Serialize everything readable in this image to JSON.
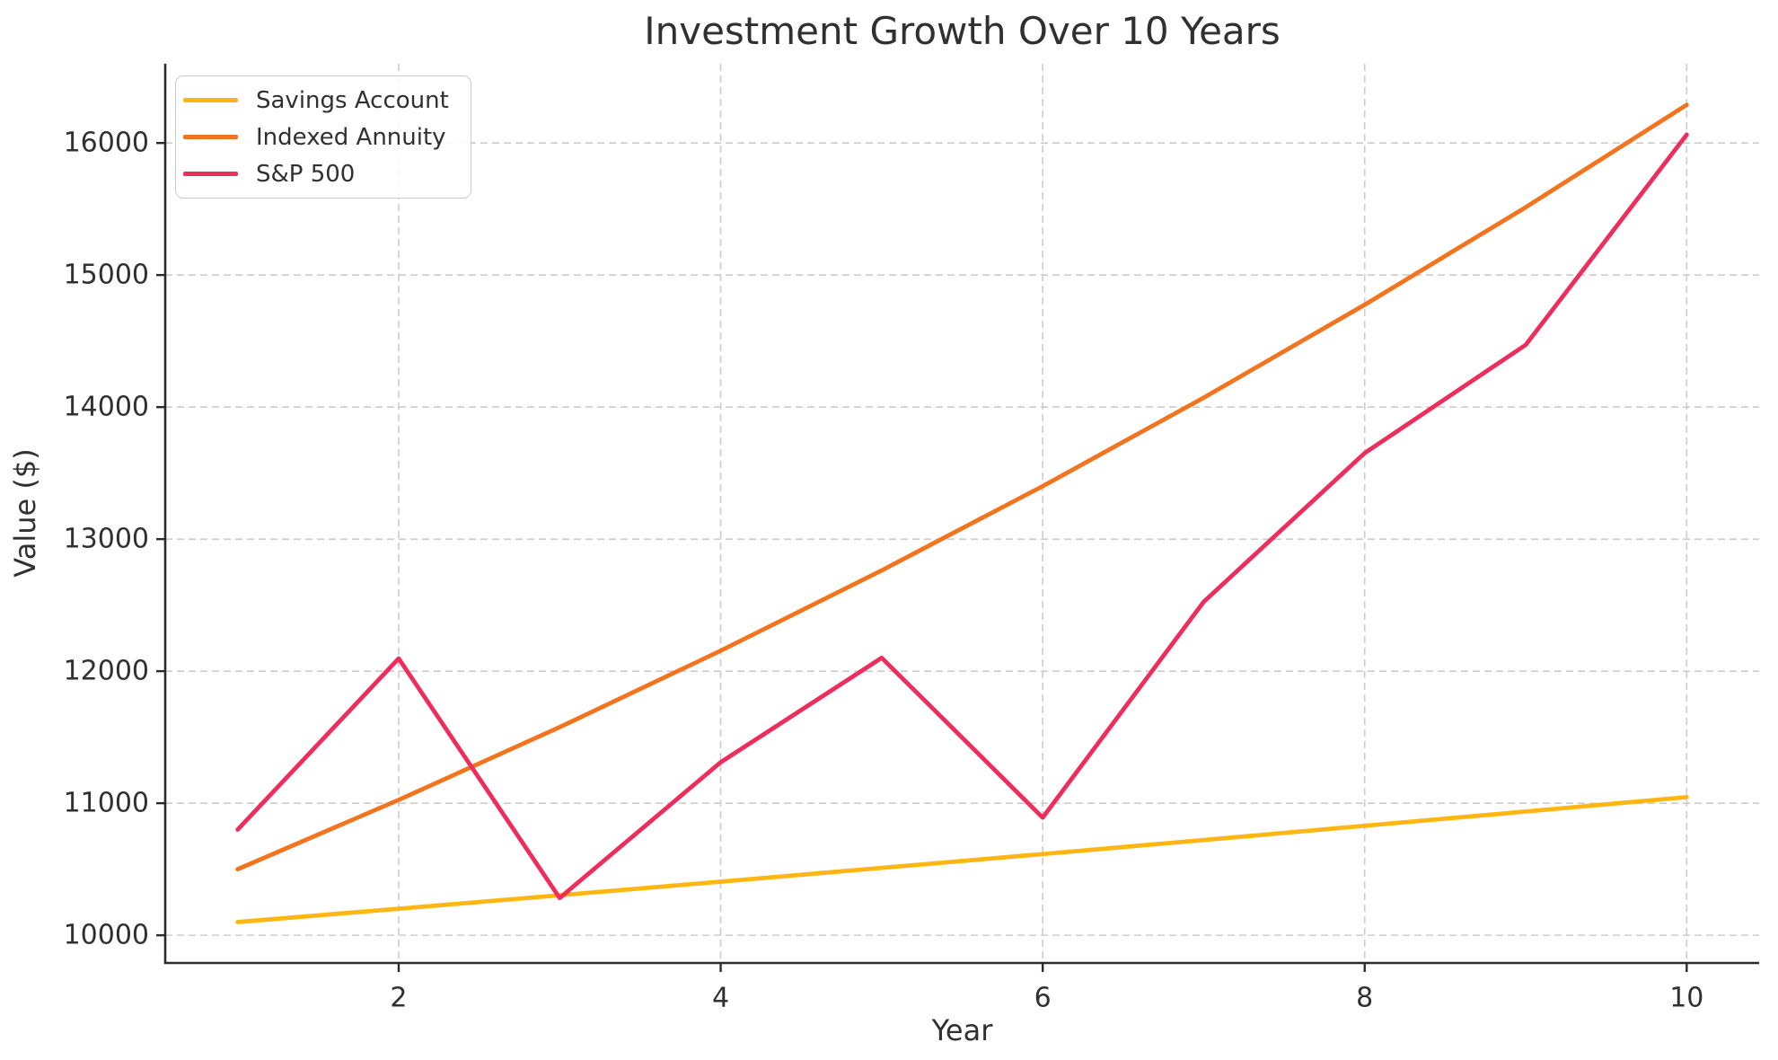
{
  "chart_data": {
    "type": "line",
    "title": "Investment Growth Over 10 Years",
    "xlabel": "Year",
    "ylabel": "Value ($)",
    "x": [
      1,
      2,
      3,
      4,
      5,
      6,
      7,
      8,
      9,
      10
    ],
    "x_ticks": [
      2,
      4,
      6,
      8,
      10
    ],
    "y_ticks": [
      10000,
      11000,
      12000,
      13000,
      14000,
      15000,
      16000
    ],
    "xlim": [
      0.55,
      10.45
    ],
    "ylim": [
      9790,
      16600
    ],
    "grid": true,
    "grid_style": "dashed",
    "legend_position": "upper-left",
    "series": [
      {
        "name": "Savings Account",
        "color": "#FFB612",
        "values": [
          10100,
          10201,
          10303,
          10406,
          10510,
          10615,
          10721,
          10829,
          10937,
          11046
        ]
      },
      {
        "name": "Indexed Annuity",
        "color": "#F4731D",
        "values": [
          10500,
          11025,
          11576,
          12155,
          12763,
          13401,
          14071,
          14775,
          15513,
          16289
        ]
      },
      {
        "name": "S&P 500",
        "color": "#EE2D5D",
        "values": [
          10800,
          12096,
          10282,
          11310,
          12101,
          10891,
          12525,
          13652,
          14471,
          16063
        ]
      }
    ]
  },
  "colors": {
    "background": "#ffffff",
    "text": "#303030",
    "axis": "#2b2b2b",
    "grid": "#cccccc",
    "legend_border": "#cccccc"
  }
}
